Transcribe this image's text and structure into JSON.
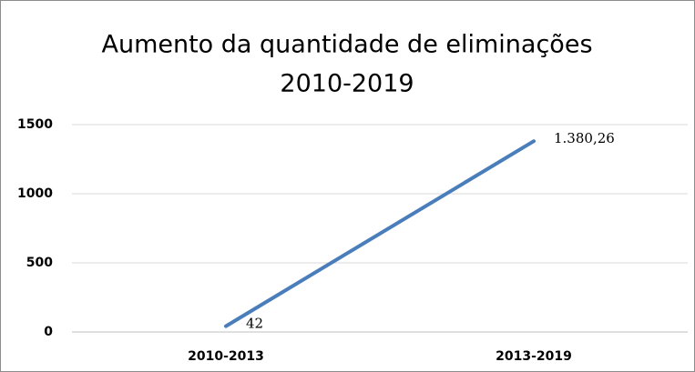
{
  "chart_data": {
    "type": "line",
    "title": [
      "Aumento da quantidade de eliminações",
      "2010-2019"
    ],
    "categories": [
      "2010-2013",
      "2013-2019"
    ],
    "series": [
      {
        "name": null,
        "color": "#4a7ebb",
        "values": [
          42,
          1380.26
        ],
        "value_labels": [
          "42",
          "1.380,26"
        ]
      }
    ],
    "ylim": [
      0,
      1500
    ],
    "yticks": [
      0,
      500,
      1000,
      1500
    ],
    "grid": true
  }
}
